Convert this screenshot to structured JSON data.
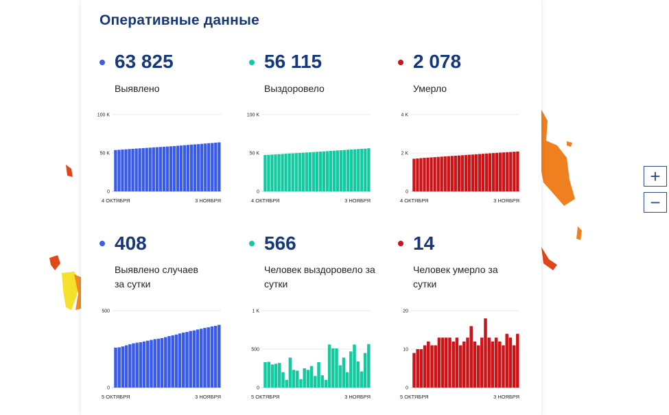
{
  "panel": {
    "title": "Оперативные данные"
  },
  "colors": {
    "blue": "#3a5be8",
    "teal": "#12c9a0",
    "red": "#cc1418",
    "title": "#16387a"
  },
  "zoom": {
    "in_label": "+",
    "out_label": "−"
  },
  "stats": [
    {
      "value": "63 825",
      "label": "Выявлено",
      "color": "#3a5be8"
    },
    {
      "value": "56 115",
      "label": "Выздоровело",
      "color": "#12c9a0"
    },
    {
      "value": "2 078",
      "label": "Умерло",
      "color": "#cc1418"
    },
    {
      "value": "408",
      "label": "Выявлено случаев за сутки",
      "color": "#3a5be8"
    },
    {
      "value": "566",
      "label": "Человек выздоровело за сутки",
      "color": "#12c9a0"
    },
    {
      "value": "14",
      "label": "Человек умерло за сутки",
      "color": "#cc1418"
    }
  ],
  "chart_data": [
    {
      "type": "bar",
      "color": "#3a5be8",
      "y_ticks": [
        "100 K",
        "50 K",
        "0"
      ],
      "ylim": [
        0,
        100000
      ],
      "x_start": "4 ОКТЯБРЯ",
      "x_end": "3 НОЯБРЯ",
      "values": [
        53800,
        54100,
        54400,
        54700,
        55100,
        55400,
        55700,
        56000,
        56300,
        56600,
        56900,
        57200,
        57500,
        57800,
        58100,
        58400,
        58700,
        59000,
        59400,
        59700,
        60100,
        60500,
        60900,
        61200,
        61500,
        61900,
        62300,
        62700,
        63000,
        63400,
        63825
      ]
    },
    {
      "type": "bar",
      "color": "#12c9a0",
      "y_ticks": [
        "100 K",
        "50 K",
        "0"
      ],
      "ylim": [
        0,
        100000
      ],
      "x_start": "4 ОКТЯБРЯ",
      "x_end": "3 НОЯБРЯ",
      "values": [
        47300,
        47600,
        47900,
        48100,
        48400,
        48700,
        49000,
        49300,
        49500,
        49800,
        50100,
        50400,
        50600,
        50900,
        51200,
        51500,
        51800,
        52100,
        52400,
        52700,
        53000,
        53300,
        53600,
        53900,
        54200,
        54500,
        54800,
        55100,
        55400,
        55600,
        56115
      ]
    },
    {
      "type": "bar",
      "color": "#cc1418",
      "y_ticks": [
        "4 K",
        "2 K",
        "0"
      ],
      "ylim": [
        0,
        4000
      ],
      "x_start": "4 ОКТЯБРЯ",
      "x_end": "3 НОЯБРЯ",
      "values": [
        1700,
        1715,
        1730,
        1745,
        1758,
        1770,
        1783,
        1795,
        1808,
        1820,
        1833,
        1846,
        1858,
        1870,
        1882,
        1895,
        1908,
        1920,
        1933,
        1946,
        1958,
        1970,
        1983,
        1996,
        2008,
        2020,
        2030,
        2040,
        2052,
        2064,
        2078
      ]
    },
    {
      "type": "bar",
      "color": "#3a5be8",
      "y_ticks": [
        "500",
        "0"
      ],
      "ylim": [
        0,
        500
      ],
      "x_start": "5 ОКТЯБРЯ",
      "x_end": "3 НОЯБРЯ",
      "values": [
        260,
        262,
        268,
        275,
        282,
        288,
        292,
        295,
        300,
        305,
        310,
        315,
        318,
        322,
        328,
        335,
        340,
        345,
        352,
        358,
        362,
        368,
        372,
        378,
        383,
        388,
        392,
        398,
        402,
        408
      ]
    },
    {
      "type": "bar",
      "color": "#12c9a0",
      "y_ticks": [
        "1 K",
        "500",
        "0"
      ],
      "ylim": [
        0,
        1000
      ],
      "x_start": "5 ОКТЯБРЯ",
      "x_end": "3 НОЯБРЯ",
      "values": [
        330,
        335,
        300,
        310,
        320,
        200,
        100,
        390,
        230,
        220,
        110,
        250,
        230,
        280,
        150,
        330,
        160,
        100,
        560,
        510,
        510,
        290,
        390,
        200,
        470,
        560,
        340,
        210,
        450,
        566
      ]
    },
    {
      "type": "bar",
      "color": "#cc1418",
      "y_ticks": [
        "20",
        "10",
        "0"
      ],
      "ylim": [
        0,
        20
      ],
      "x_start": "5 ОКТЯБРЯ",
      "x_end": "3 НОЯБРЯ",
      "values": [
        9,
        10,
        10,
        11,
        12,
        11,
        11,
        13,
        13,
        13,
        13,
        12,
        13,
        11,
        12,
        13,
        16,
        12,
        11,
        13,
        18,
        13,
        12,
        13,
        12,
        11,
        14,
        13,
        11,
        14
      ]
    }
  ]
}
